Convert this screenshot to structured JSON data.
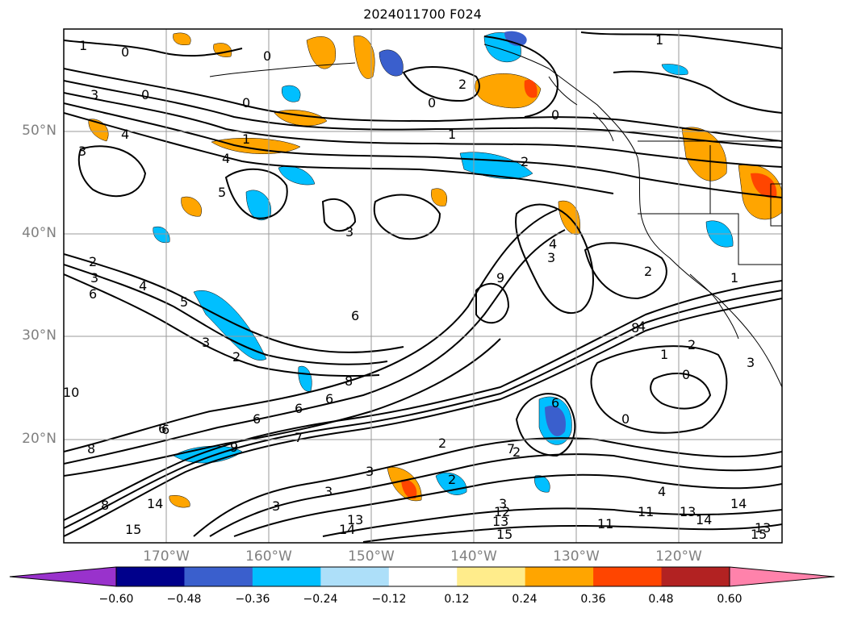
{
  "title": "2024011700 F024",
  "map": {
    "lat_labels": [
      "50°N",
      "40°N",
      "30°N",
      "20°N"
    ],
    "lon_labels": [
      "170°W",
      "160°W",
      "150°W",
      "140°W",
      "130°W",
      "120°W"
    ],
    "grid": true,
    "contour_color": "#000000"
  },
  "contour_labels": [
    "1",
    "0",
    "0",
    "1",
    "3",
    "2",
    "0",
    "0",
    "1",
    "4",
    "3",
    "0",
    "0",
    "1",
    "2",
    "4",
    "5",
    "3",
    "3",
    "4",
    "2",
    "2",
    "3",
    "4",
    "5",
    "3",
    "2",
    "6",
    "6",
    "8",
    "6",
    "6",
    "6",
    "10",
    "8",
    "6",
    "7",
    "9",
    "2",
    "3",
    "3",
    "13",
    "14",
    "15",
    "8",
    "3",
    "9",
    "2",
    "1",
    "2",
    "0",
    "0",
    "3",
    "1",
    "4",
    "2",
    "3",
    "4",
    "14",
    "15",
    "11",
    "13",
    "14",
    "15",
    "14",
    "13",
    "12",
    "11",
    "13",
    "6",
    "7",
    "8",
    "6"
  ],
  "colorbar": {
    "ticks": [
      "−0.60",
      "−0.48",
      "−0.36",
      "−0.24",
      "−0.12",
      "0.12",
      "0.24",
      "0.36",
      "0.48",
      "0.60"
    ],
    "colors": [
      "#9932CC",
      "#00008B",
      "#3A5FCD",
      "#00BFFF",
      "#ADDFF9",
      "#FFFFFF",
      "#FFEC8B",
      "#FFA500",
      "#FF4500",
      "#B22222",
      "#FF82AB"
    ]
  }
}
